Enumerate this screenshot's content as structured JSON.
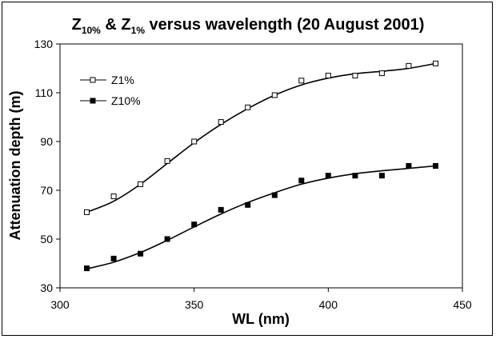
{
  "chart_data": {
    "type": "scatter",
    "title": "Z10% & Z1% versus wavelength (20 August 2001)",
    "title_parts": {
      "z": "Z",
      "sub10": "10%",
      "amp": " & ",
      "sub1": "1%",
      "rest": " versus wavelength (20 August 2001)"
    },
    "xlabel": "WL (nm)",
    "ylabel": "Attenuation depth (m)",
    "xlim": [
      300,
      450
    ],
    "ylim": [
      30,
      130
    ],
    "xticks": [
      300,
      350,
      400,
      450
    ],
    "yticks": [
      30,
      50,
      70,
      90,
      110,
      130
    ],
    "grid": false,
    "legend_placement": "top-left",
    "series": [
      {
        "name": "Z1%",
        "marker": "open-square",
        "color": "#000000",
        "x": [
          310,
          320,
          330,
          340,
          350,
          360,
          370,
          380,
          390,
          400,
          410,
          420,
          430,
          440
        ],
        "y": [
          61,
          67.5,
          72.5,
          82,
          90,
          98,
          104,
          109,
          115,
          117,
          117,
          118,
          121,
          122
        ],
        "trend": [
          [
            310,
            61
          ],
          [
            320,
            65.5
          ],
          [
            330,
            72.5
          ],
          [
            340,
            81
          ],
          [
            350,
            89.5
          ],
          [
            360,
            97
          ],
          [
            370,
            103.5
          ],
          [
            380,
            109
          ],
          [
            390,
            113.2
          ],
          [
            400,
            116
          ],
          [
            410,
            117.8
          ],
          [
            420,
            118.8
          ],
          [
            430,
            120
          ],
          [
            440,
            122
          ]
        ]
      },
      {
        "name": "Z10%",
        "marker": "filled-square",
        "color": "#000000",
        "x": [
          310,
          320,
          330,
          340,
          350,
          360,
          370,
          380,
          390,
          400,
          410,
          420,
          430,
          440
        ],
        "y": [
          38,
          42,
          44,
          50,
          56,
          62,
          64,
          68,
          74,
          76,
          76,
          76,
          80,
          80
        ],
        "trend": [
          [
            310,
            37.8
          ],
          [
            320,
            40.5
          ],
          [
            330,
            44.5
          ],
          [
            340,
            49.5
          ],
          [
            350,
            55
          ],
          [
            360,
            60.3
          ],
          [
            370,
            65
          ],
          [
            380,
            69
          ],
          [
            390,
            72.5
          ],
          [
            400,
            75
          ],
          [
            410,
            76.8
          ],
          [
            420,
            78
          ],
          [
            430,
            79
          ],
          [
            440,
            80
          ]
        ]
      }
    ]
  }
}
